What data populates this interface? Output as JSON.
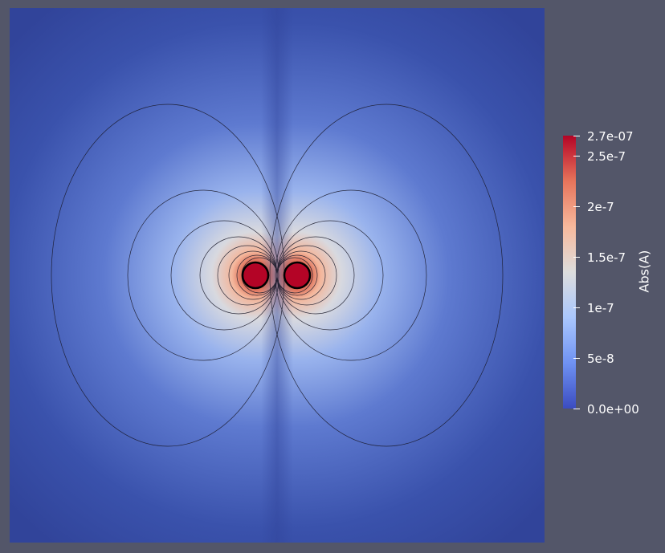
{
  "colors": {
    "window_background": "#535669",
    "colormap": [
      "#3b4cc0",
      "#6f92f3",
      "#aac7fd",
      "#dddddd",
      "#f7b89c",
      "#e7745b",
      "#b40426"
    ],
    "contour_line": "#1a1a2a"
  },
  "plot": {
    "field": "Abs(A)",
    "description_icons": [
      "contour-lines",
      "dipole-sources"
    ]
  },
  "colorbar": {
    "title": "Abs(A)",
    "range": [
      0.0,
      2.7e-07
    ],
    "ticks": [
      {
        "label": "2.7e-07",
        "value": 2.7e-07
      },
      {
        "label": "2.5e-7",
        "value": 2.5e-07
      },
      {
        "label": "2e-7",
        "value": 2e-07
      },
      {
        "label": "1.5e-7",
        "value": 1.5e-07
      },
      {
        "label": "1e-7",
        "value": 1e-07
      },
      {
        "label": "5e-8",
        "value": 5e-08
      },
      {
        "label": "0.0e+00",
        "value": 0.0
      }
    ]
  }
}
